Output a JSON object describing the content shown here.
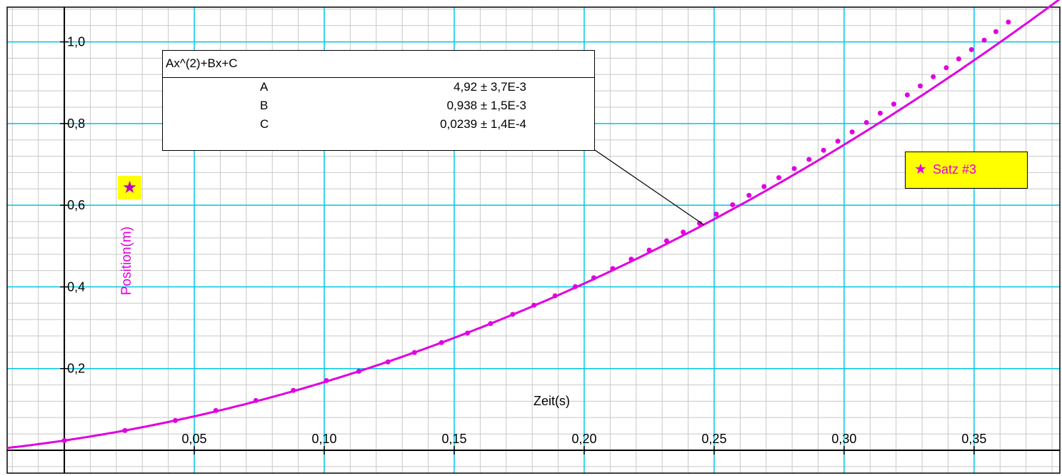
{
  "chart_data": {
    "type": "scatter",
    "x_axis": {
      "label": "Zeit(s)",
      "range": [
        -0.022,
        0.383
      ],
      "ticks": [
        0.05,
        0.1,
        0.15,
        0.2,
        0.25,
        0.3,
        0.35
      ],
      "tick_labels": [
        "0,05",
        "0,10",
        "0,15",
        "0,20",
        "0,25",
        "0,30",
        "0,35"
      ],
      "major_step": 0.05,
      "minor_step": 0.01
    },
    "y_axis": {
      "label": "Position(m)",
      "range": [
        -0.056,
        1.085
      ],
      "ticks": [
        0.2,
        0.4,
        0.6,
        0.8,
        1.0
      ],
      "tick_labels": [
        "0,2",
        "0,4",
        "0,6",
        "0,8",
        "1,0"
      ],
      "major_step": 0.2,
      "minor_step": 0.04
    },
    "series": [
      {
        "name": "Satz #3",
        "marker": "dot",
        "x": [
          0,
          0.0233,
          0.0427,
          0.0583,
          0.0737,
          0.0881,
          0.1008,
          0.1133,
          0.1245,
          0.1347,
          0.1451,
          0.1551,
          0.164,
          0.1725,
          0.1807,
          0.1888,
          0.1966,
          0.2037,
          0.211,
          0.2181,
          0.225,
          0.2317,
          0.2381,
          0.2444,
          0.2508,
          0.2571,
          0.2634,
          0.2692,
          0.2749,
          0.2808,
          0.2865,
          0.2921,
          0.2976,
          0.3031,
          0.3086,
          0.3139,
          0.3191,
          0.3243,
          0.3293,
          0.3343,
          0.3393,
          0.3441,
          0.349,
          0.3539,
          0.3584,
          0.3632
        ],
        "y": [
          0.0239,
          0.0483,
          0.0729,
          0.0973,
          0.1219,
          0.1466,
          0.1706,
          0.1934,
          0.2164,
          0.2393,
          0.2637,
          0.2871,
          0.3102,
          0.3328,
          0.3551,
          0.3782,
          0.4007,
          0.4224,
          0.445,
          0.468,
          0.4901,
          0.5127,
          0.5342,
          0.5555,
          0.5782,
          0.6012,
          0.6242,
          0.6458,
          0.6675,
          0.6898,
          0.7121,
          0.7345,
          0.7568,
          0.7795,
          0.8025,
          0.8253,
          0.8476,
          0.8701,
          0.892,
          0.9145,
          0.9366,
          0.9584,
          0.9811,
          1.0041,
          1.0251,
          1.0485
        ]
      }
    ],
    "fit": {
      "formula": "Ax^(2)+Bx+C",
      "A": 4.92,
      "B": 0.938,
      "C": 0.0239
    },
    "grid": true,
    "legend_placement": "right"
  },
  "fit_box": {
    "title": "Ax^(2)+Bx+C",
    "params": [
      {
        "name": "A",
        "value": "4,92 ± 3,7E-3"
      },
      {
        "name": "B",
        "value": "0,938 ± 1,5E-3"
      },
      {
        "name": "C",
        "value": "0,0239 ± 1,4E-4"
      }
    ]
  },
  "legend": {
    "label": "Satz #3",
    "icon": "star-icon"
  },
  "colors": {
    "series": "#e000e0",
    "grid_major": "#00c8e6",
    "grid_minor": "#c8c8c8",
    "legend_bg": "#ffff00"
  }
}
